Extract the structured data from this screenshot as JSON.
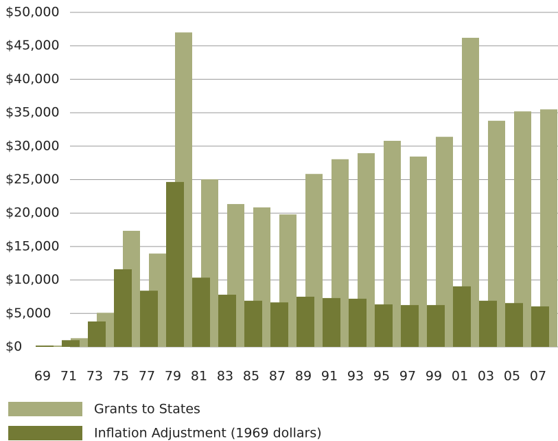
{
  "chart_data": {
    "type": "bar",
    "categories": [
      "69",
      "71",
      "73",
      "75",
      "77",
      "79",
      "81",
      "83",
      "85",
      "87",
      "89",
      "91",
      "93",
      "95",
      "97",
      "99",
      "01",
      "03",
      "05",
      "07"
    ],
    "series": [
      {
        "name": "Grants to States",
        "color": "#a8ad7c",
        "values": [
          200,
          1300,
          5100,
          17350,
          13950,
          47000,
          25050,
          21350,
          20850,
          19800,
          25850,
          28050,
          28950,
          30800,
          28450,
          31400,
          46200,
          33800,
          35200,
          35500
        ]
      },
      {
        "name": "Inflation Adjustment (1969 dollars)",
        "color": "#737a35",
        "values": [
          200,
          1000,
          3800,
          11600,
          8400,
          24650,
          10350,
          7800,
          6900,
          6650,
          7500,
          7300,
          7200,
          6350,
          6250,
          6250,
          9050,
          6900,
          6550,
          6050
        ]
      }
    ],
    "ylim": [
      0,
      50000
    ],
    "yticks": [
      {
        "value": 0,
        "label": "$0"
      },
      {
        "value": 5000,
        "label": "$5,000"
      },
      {
        "value": 10000,
        "label": "$10,000"
      },
      {
        "value": 15000,
        "label": "$15,000"
      },
      {
        "value": 20000,
        "label": "$20,000"
      },
      {
        "value": 25000,
        "label": "$25,000"
      },
      {
        "value": 30000,
        "label": "$30,000"
      },
      {
        "value": 35000,
        "label": "$35,000"
      },
      {
        "value": 40000,
        "label": "$40,000"
      },
      {
        "value": 45000,
        "label": "$45,000"
      },
      {
        "value": 50000,
        "label": "$50,000"
      }
    ],
    "grid": true
  }
}
